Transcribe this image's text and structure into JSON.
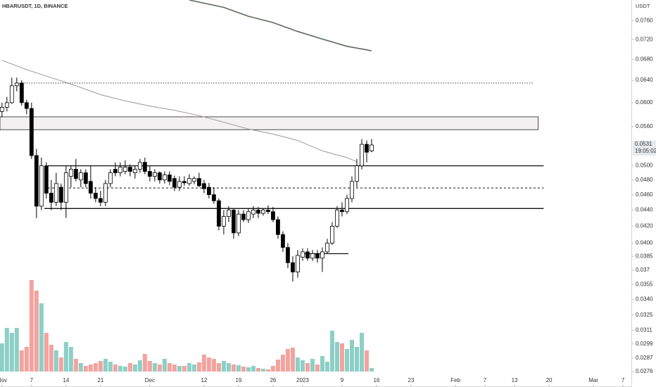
{
  "chart_data": {
    "type": "candlestick",
    "title": "HBARUSDT, 1D, BINANCE",
    "currency": "USDT",
    "log_scale": true,
    "grid": false,
    "up_color": "#ffffff",
    "down_color": "#000000",
    "wick_color": "#000000",
    "volume_up_color": "#8ccfc6",
    "volume_down_color": "#f2a39e",
    "xlim": [
      -0.4,
      127.7
    ],
    "xticks": [
      {
        "value": 0,
        "label": "Nov"
      },
      {
        "value": 6,
        "label": "7"
      },
      {
        "value": 13,
        "label": "14"
      },
      {
        "value": 20,
        "label": "21"
      },
      {
        "value": 30,
        "label": "Dec"
      },
      {
        "value": 41,
        "label": "12"
      },
      {
        "value": 48,
        "label": "19"
      },
      {
        "value": 55,
        "label": "26"
      },
      {
        "value": 61,
        "label": "2023"
      },
      {
        "value": 69,
        "label": "9"
      },
      {
        "value": 76,
        "label": "16"
      },
      {
        "value": 83,
        "label": "23"
      },
      {
        "value": 92,
        "label": "Feb"
      },
      {
        "value": 98,
        "label": "7"
      },
      {
        "value": 104,
        "label": "13"
      },
      {
        "value": 111,
        "label": "20"
      },
      {
        "value": 120,
        "label": "Mar"
      },
      {
        "value": 126,
        "label": "7"
      }
    ],
    "ylim": [
      0.0264,
      0.0807
    ],
    "yticks": [
      {
        "value": 0.076,
        "label": "0.0760"
      },
      {
        "value": 0.072,
        "label": "0.0720"
      },
      {
        "value": 0.068,
        "label": "0.0680"
      },
      {
        "value": 0.064,
        "label": "0.0640"
      },
      {
        "value": 0.06,
        "label": "0.0600"
      },
      {
        "value": 0.056,
        "label": "0.0560"
      },
      {
        "value": 0.05,
        "label": "0.0500"
      },
      {
        "value": 0.048,
        "label": "0.0480"
      },
      {
        "value": 0.046,
        "label": "0.0460"
      },
      {
        "value": 0.044,
        "label": "0.0440"
      },
      {
        "value": 0.042,
        "label": "0.0420"
      },
      {
        "value": 0.04,
        "label": "0.0400"
      },
      0.0385,
      0.037,
      0.0355,
      {
        "value": 0.034,
        "label": "0.0340"
      },
      0.0325,
      0.0311,
      0.0299,
      0.0287,
      0.0276
    ],
    "open": [
      0.0585,
      0.0592,
      0.06,
      0.063,
      0.0635,
      0.06,
      0.059,
      0.0515,
      0.0445,
      0.05,
      0.0462,
      0.045,
      0.047,
      0.045,
      0.0485,
      0.0495,
      0.048,
      0.049,
      0.0478,
      0.0462,
      0.0455,
      0.045,
      0.0475,
      0.0495,
      0.049,
      0.0492,
      0.0498,
      0.049,
      0.0495,
      0.0505,
      0.0492,
      0.0485,
      0.049,
      0.048,
      0.0487,
      0.0482,
      0.047,
      0.0478,
      0.0475,
      0.0478,
      0.0482,
      0.0475,
      0.047,
      0.046,
      0.0452,
      0.042,
      0.0432,
      0.044,
      0.0412,
      0.0435,
      0.0428,
      0.0435,
      0.044,
      0.0436,
      0.044,
      0.0438,
      0.0428,
      0.041,
      0.0395,
      0.0378,
      0.0368,
      0.0384,
      0.039,
      0.0383,
      0.0388,
      0.0383,
      0.039,
      0.04,
      0.042,
      0.044,
      0.0438,
      0.0455,
      0.0478,
      0.05,
      0.0532,
      0.0522
    ],
    "high": [
      0.06,
      0.061,
      0.0645,
      0.0645,
      0.064,
      0.0605,
      0.06,
      0.0525,
      0.0512,
      0.0505,
      0.048,
      0.049,
      0.0475,
      0.05,
      0.05,
      0.051,
      0.0495,
      0.0495,
      0.05,
      0.047,
      0.0465,
      0.048,
      0.0495,
      0.0505,
      0.0505,
      0.0508,
      0.0502,
      0.05,
      0.051,
      0.0512,
      0.05,
      0.0495,
      0.0492,
      0.0492,
      0.0492,
      0.0486,
      0.0485,
      0.0485,
      0.0488,
      0.0485,
      0.049,
      0.048,
      0.0476,
      0.047,
      0.0455,
      0.044,
      0.0445,
      0.0442,
      0.044,
      0.044,
      0.0442,
      0.0445,
      0.0444,
      0.0442,
      0.0446,
      0.0444,
      0.0432,
      0.0414,
      0.04,
      0.0385,
      0.0392,
      0.0394,
      0.0394,
      0.0392,
      0.0392,
      0.0395,
      0.0405,
      0.0425,
      0.0445,
      0.045,
      0.046,
      0.0485,
      0.051,
      0.054,
      0.0538,
      0.054
    ],
    "low": [
      0.0575,
      0.0585,
      0.0598,
      0.062,
      0.0595,
      0.058,
      0.051,
      0.043,
      0.044,
      0.0455,
      0.044,
      0.0445,
      0.044,
      0.043,
      0.047,
      0.0478,
      0.047,
      0.047,
      0.0455,
      0.045,
      0.0445,
      0.0445,
      0.047,
      0.0485,
      0.0485,
      0.0488,
      0.0485,
      0.0482,
      0.049,
      0.0488,
      0.0478,
      0.0478,
      0.0475,
      0.0475,
      0.0473,
      0.0465,
      0.0465,
      0.0472,
      0.0472,
      0.0474,
      0.047,
      0.0462,
      0.0455,
      0.0448,
      0.0415,
      0.041,
      0.0425,
      0.0405,
      0.0408,
      0.0425,
      0.0424,
      0.043,
      0.043,
      0.0433,
      0.0435,
      0.0425,
      0.0405,
      0.039,
      0.0372,
      0.0358,
      0.0362,
      0.038,
      0.038,
      0.038,
      0.0378,
      0.0368,
      0.0388,
      0.0398,
      0.0418,
      0.0432,
      0.0435,
      0.045,
      0.047,
      0.0495,
      0.0505,
      0.052
    ],
    "close": [
      0.0592,
      0.06,
      0.063,
      0.0635,
      0.06,
      0.059,
      0.0515,
      0.0445,
      0.05,
      0.0462,
      0.045,
      0.0475,
      0.045,
      0.049,
      0.0495,
      0.0482,
      0.049,
      0.0475,
      0.0462,
      0.0455,
      0.045,
      0.0475,
      0.049,
      0.049,
      0.0498,
      0.0498,
      0.0492,
      0.0495,
      0.0505,
      0.0492,
      0.0485,
      0.049,
      0.048,
      0.0487,
      0.0478,
      0.047,
      0.0478,
      0.0476,
      0.0482,
      0.0482,
      0.0472,
      0.0468,
      0.046,
      0.0452,
      0.042,
      0.0432,
      0.044,
      0.0412,
      0.0435,
      0.0428,
      0.0438,
      0.044,
      0.0436,
      0.044,
      0.0438,
      0.0428,
      0.041,
      0.0395,
      0.0378,
      0.0368,
      0.0386,
      0.039,
      0.0383,
      0.0388,
      0.0383,
      0.039,
      0.04,
      0.042,
      0.044,
      0.0438,
      0.0455,
      0.0478,
      0.05,
      0.0532,
      0.052,
      0.0531
    ],
    "volume": [
      40,
      62,
      55,
      62,
      30,
      35,
      130,
      115,
      97,
      55,
      38,
      30,
      20,
      42,
      35,
      18,
      12,
      8,
      10,
      12,
      15,
      18,
      14,
      10,
      8,
      7,
      12,
      10,
      16,
      25,
      15,
      12,
      10,
      18,
      12,
      10,
      8,
      8,
      12,
      10,
      13,
      24,
      20,
      18,
      12,
      15,
      12,
      10,
      9,
      7,
      6,
      8,
      5,
      4,
      3,
      8,
      17,
      24,
      32,
      34,
      20,
      16,
      12,
      18,
      10,
      22,
      14,
      58,
      42,
      40,
      32,
      45,
      35,
      55,
      30,
      5
    ],
    "moving_averages": [
      {
        "color": "#5a6b5a",
        "width": 1.6,
        "x": [
          38,
          45,
          50,
          55,
          60,
          65,
          70,
          75
        ],
        "values": [
          0.0807,
          0.079,
          0.077,
          0.0756,
          0.0737,
          0.0721,
          0.0706,
          0.0697
        ]
      },
      {
        "color": "#9a9a9a",
        "width": 1,
        "x": [
          0,
          5,
          10,
          15,
          20,
          25,
          30,
          35,
          40,
          45,
          50,
          55,
          60,
          65,
          70,
          72
        ],
        "values": [
          0.0678,
          0.066,
          0.0645,
          0.063,
          0.0614,
          0.0603,
          0.0594,
          0.0587,
          0.0578,
          0.0567,
          0.0556,
          0.0548,
          0.0538,
          0.0522,
          0.0512,
          0.0506
        ]
      }
    ],
    "zone": {
      "low": 0.0555,
      "high": 0.0576,
      "from": -0.4,
      "to": 108.8,
      "color": "#f3f0f2"
    },
    "levels": [
      {
        "value": 0.0635,
        "from": 2.6,
        "to": 107.8,
        "style": "dotted"
      },
      {
        "value": 0.05,
        "from": 9.3,
        "to": 109.9,
        "style": "solid"
      },
      {
        "value": 0.0469,
        "from": 9.3,
        "to": 109.9,
        "style": "dashed"
      },
      {
        "value": 0.0442,
        "from": 8.6,
        "to": 109.9,
        "style": "solid"
      },
      {
        "value": 0.0388,
        "from": 60.7,
        "to": 70.3,
        "style": "solid"
      }
    ],
    "last_price": 0.0531,
    "countdown": "19:05:02"
  }
}
